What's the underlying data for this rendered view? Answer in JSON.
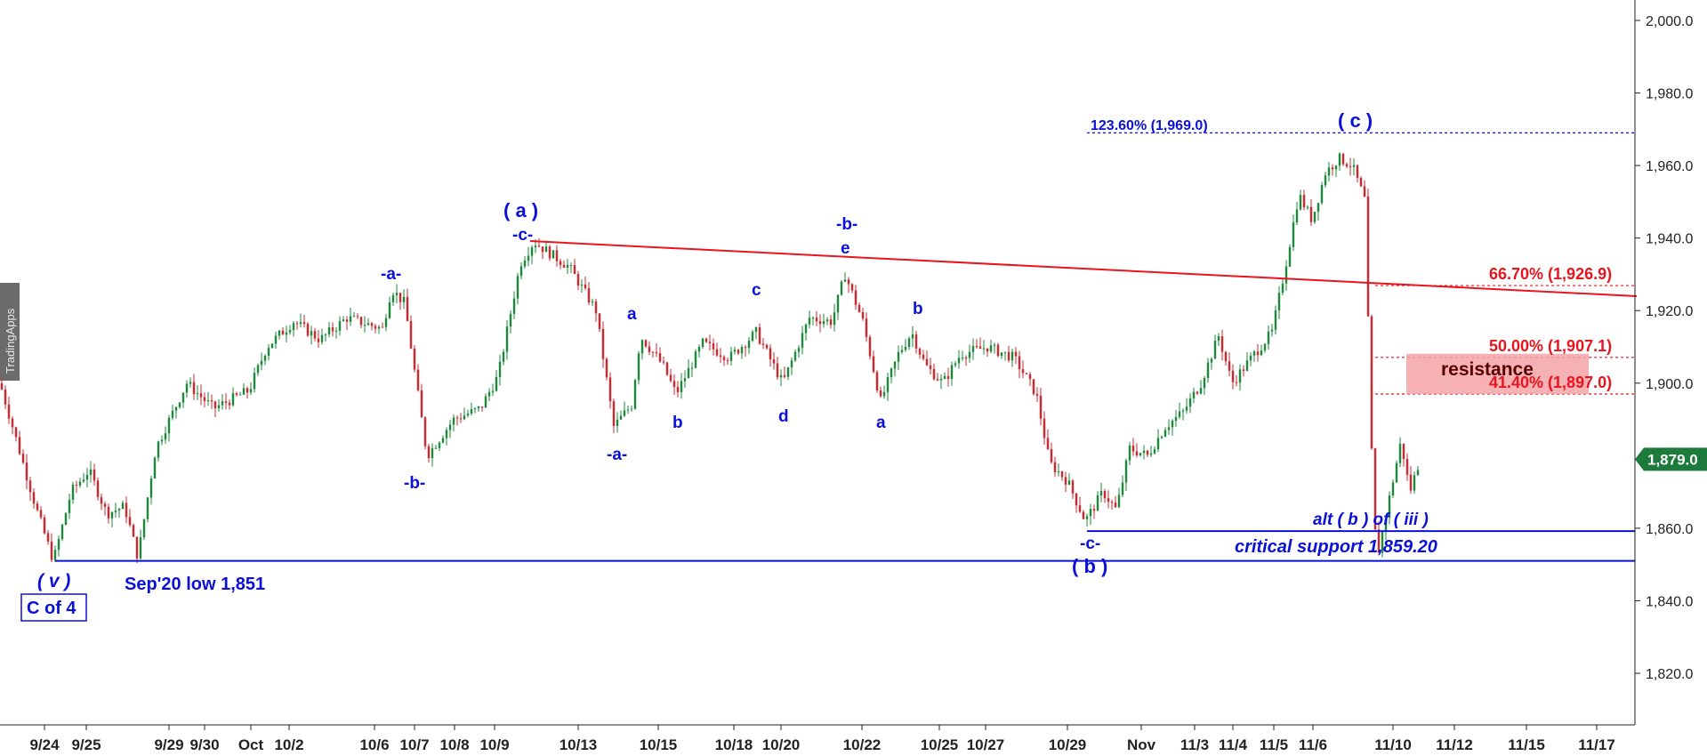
{
  "watermark": "TradingApps",
  "chart_data": {
    "type": "candlestick",
    "ylim": [
      1806,
      2006
    ],
    "yticks": [
      "2,000.0",
      "1,980.0",
      "1,960.0",
      "1,940.0",
      "1,920.0",
      "1,900.0",
      "1,860.0",
      "1,840.0",
      "1,820.0"
    ],
    "ytick_values": [
      2000,
      1980,
      1960,
      1940,
      1920,
      1900,
      1860,
      1840,
      1820
    ],
    "xticks": [
      "9/24",
      "9/25",
      "9/29",
      "9/30",
      "Oct",
      "10/2",
      "10/6",
      "10/7",
      "10/8",
      "10/9",
      "10/13",
      "10/15",
      "10/18",
      "10/20",
      "10/22",
      "10/25",
      "10/27",
      "10/29",
      "Nov",
      "11/3",
      "11/4",
      "11/5",
      "11/6",
      "11/10",
      "11/12",
      "11/15",
      "11/17"
    ],
    "last_price": "1,879.0",
    "last_price_value": 1879.0,
    "price_path": [
      [
        0,
        1900
      ],
      [
        20,
        1883
      ],
      [
        40,
        1866
      ],
      [
        60,
        1851
      ],
      [
        80,
        1870
      ],
      [
        100,
        1876
      ],
      [
        120,
        1864
      ],
      [
        140,
        1866
      ],
      [
        155,
        1852
      ],
      [
        175,
        1882
      ],
      [
        210,
        1900
      ],
      [
        240,
        1893
      ],
      [
        280,
        1898
      ],
      [
        300,
        1910
      ],
      [
        330,
        1917
      ],
      [
        360,
        1912
      ],
      [
        390,
        1918
      ],
      [
        430,
        1915
      ],
      [
        440,
        1926
      ],
      [
        455,
        1922
      ],
      [
        465,
        1905
      ],
      [
        480,
        1880
      ],
      [
        510,
        1890
      ],
      [
        540,
        1893
      ],
      [
        560,
        1902
      ],
      [
        585,
        1933
      ],
      [
        600,
        1939
      ],
      [
        640,
        1932
      ],
      [
        670,
        1920
      ],
      [
        690,
        1888
      ],
      [
        710,
        1894
      ],
      [
        720,
        1913
      ],
      [
        745,
        1905
      ],
      [
        760,
        1897
      ],
      [
        790,
        1911
      ],
      [
        820,
        1907
      ],
      [
        850,
        1914
      ],
      [
        880,
        1900
      ],
      [
        910,
        1918
      ],
      [
        935,
        1917
      ],
      [
        950,
        1930
      ],
      [
        970,
        1917
      ],
      [
        990,
        1895
      ],
      [
        1010,
        1908
      ],
      [
        1025,
        1914
      ],
      [
        1040,
        1905
      ],
      [
        1060,
        1900
      ],
      [
        1080,
        1908
      ],
      [
        1110,
        1910
      ],
      [
        1140,
        1907
      ],
      [
        1165,
        1897
      ],
      [
        1180,
        1878
      ],
      [
        1200,
        1873
      ],
      [
        1220,
        1862
      ],
      [
        1240,
        1870
      ],
      [
        1255,
        1865
      ],
      [
        1270,
        1882
      ],
      [
        1290,
        1880
      ],
      [
        1310,
        1888
      ],
      [
        1330,
        1892
      ],
      [
        1350,
        1900
      ],
      [
        1370,
        1913
      ],
      [
        1385,
        1900
      ],
      [
        1410,
        1908
      ],
      [
        1430,
        1914
      ],
      [
        1445,
        1932
      ],
      [
        1460,
        1952
      ],
      [
        1475,
        1945
      ],
      [
        1490,
        1958
      ],
      [
        1505,
        1962
      ],
      [
        1520,
        1960
      ],
      [
        1535,
        1950
      ],
      [
        1540,
        1895
      ],
      [
        1545,
        1860
      ],
      [
        1550,
        1854
      ],
      [
        1560,
        1866
      ],
      [
        1575,
        1884
      ],
      [
        1585,
        1870
      ],
      [
        1595,
        1878
      ]
    ],
    "series": [
      {
        "name": "",
        "values": []
      }
    ]
  },
  "levels": {
    "sep20_low_value": 1851,
    "critical_support_value": 1859.2,
    "fib_123_value": 1969.0,
    "fib_667_value": 1926.9,
    "fib_50_value": 1907.1,
    "fib_414_value": 1897.0
  },
  "annotations": {
    "sep20_low": "Sep'20 low 1,851",
    "critical_support": "critical support 1,859.20",
    "alt_b": "alt ( b ) of ( iii )",
    "resistance": "resistance",
    "fib_123": "123.60% (1,969.0)",
    "fib_667": "66.70% (1,926.9)",
    "fib_50": "50.00% (1,907.1)",
    "fib_414": "41.40% (1,897.0)",
    "wave_v": "( v )",
    "c_of_4": "C of 4",
    "wave_a_big": "( a )",
    "wave_b_big": "( b )",
    "wave_c_big": "( c )",
    "c_minus_1": "-c-",
    "c_minus_2": "-c-",
    "a_minus_1": "-a-",
    "a_minus_2": "-a-",
    "b_minus_1": "-b-",
    "b_minus_2": "-b-",
    "a_small_1": "a",
    "b_small_1": "b",
    "c_small_1": "c",
    "d_small_1": "d",
    "e_small_1": "e",
    "a_small_2": "a",
    "b_small_2": "b"
  },
  "colors": {
    "wave_blue": "#0b10d8",
    "resistance_red": "#e8141e",
    "resistance_zone": "#f4a3a8",
    "candle_up": "#1a8a3a",
    "candle_down": "#d4242c",
    "price_badge": "#1c7a3a"
  }
}
